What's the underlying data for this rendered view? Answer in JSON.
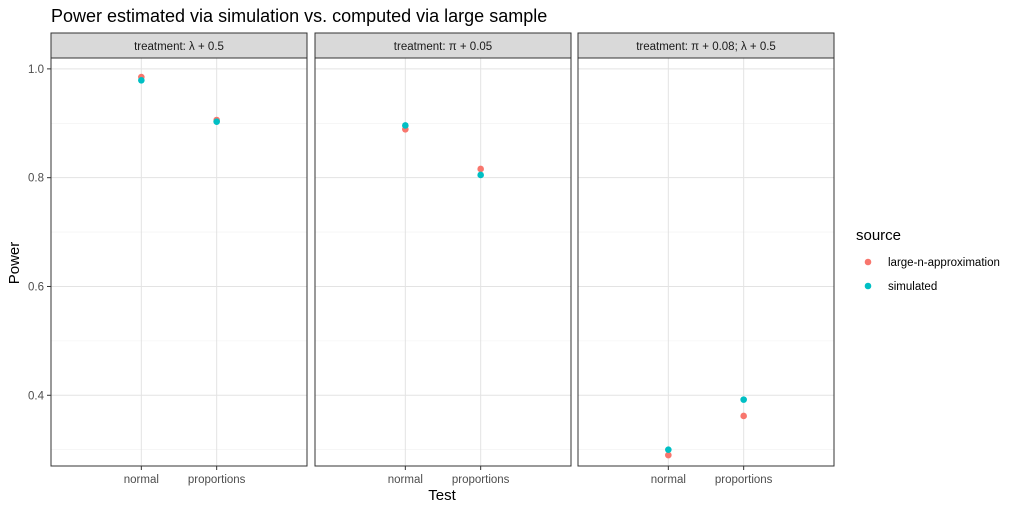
{
  "chart_data": {
    "type": "scatter",
    "title": "Power estimated via simulation vs. computed via large sample",
    "xlabel": "Test",
    "ylabel": "Power",
    "categories": [
      "normal",
      "proportions"
    ],
    "ylim": [
      0.27,
      1.02
    ],
    "yticks": [
      0.4,
      0.6,
      0.8,
      1.0
    ],
    "ytick_labels": [
      "0.4",
      "0.6",
      "0.8",
      "1.0"
    ],
    "grid": true,
    "legend": {
      "title": "source",
      "position": "right",
      "entries": [
        {
          "name": "large-n-approximation",
          "color": "#F8766D"
        },
        {
          "name": "simulated",
          "color": "#00BFC4"
        }
      ]
    },
    "panels": [
      {
        "strip": "treatment: λ + 0.5",
        "series": [
          {
            "name": "large-n-approximation",
            "values": [
              0.985,
              0.906
            ]
          },
          {
            "name": "simulated",
            "values": [
              0.979,
              0.903
            ]
          }
        ]
      },
      {
        "strip": "treatment: π + 0.05",
        "series": [
          {
            "name": "large-n-approximation",
            "values": [
              0.889,
              0.816
            ]
          },
          {
            "name": "simulated",
            "values": [
              0.896,
              0.805
            ]
          }
        ]
      },
      {
        "strip": "treatment: π + 0.08; λ + 0.5",
        "series": [
          {
            "name": "large-n-approximation",
            "values": [
              0.29,
              0.362
            ]
          },
          {
            "name": "simulated",
            "values": [
              0.3,
              0.392
            ]
          }
        ]
      }
    ]
  }
}
